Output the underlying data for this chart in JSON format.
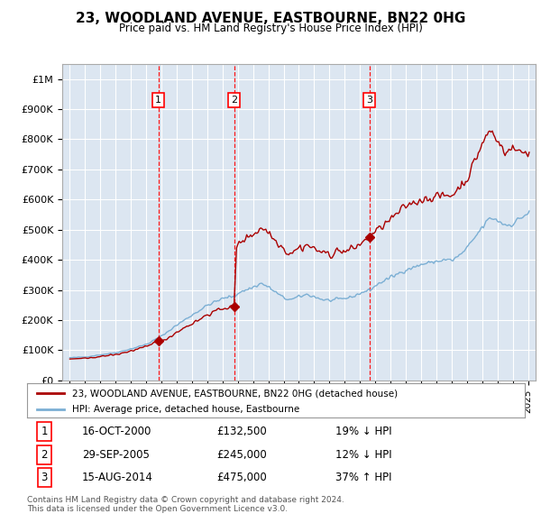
{
  "title": "23, WOODLAND AVENUE, EASTBOURNE, BN22 0HG",
  "subtitle": "Price paid vs. HM Land Registry's House Price Index (HPI)",
  "property_label": "23, WOODLAND AVENUE, EASTBOURNE, BN22 0HG (detached house)",
  "hpi_label": "HPI: Average price, detached house, Eastbourne",
  "property_color": "#aa0000",
  "hpi_color": "#7bafd4",
  "background_color": "#dce6f1",
  "transactions": [
    {
      "num": 1,
      "date": "16-OCT-2000",
      "price": 132500,
      "pct": "19%",
      "dir": "↓",
      "x_year": 2000.79
    },
    {
      "num": 2,
      "date": "29-SEP-2005",
      "price": 245000,
      "pct": "12%",
      "dir": "↓",
      "x_year": 2005.75
    },
    {
      "num": 3,
      "date": "15-AUG-2014",
      "price": 475000,
      "pct": "37%",
      "dir": "↑",
      "x_year": 2014.62
    }
  ],
  "footer": "Contains HM Land Registry data © Crown copyright and database right 2024.\nThis data is licensed under the Open Government Licence v3.0.",
  "ylim": [
    0,
    1050000
  ],
  "yticks": [
    0,
    100000,
    200000,
    300000,
    400000,
    500000,
    600000,
    700000,
    800000,
    900000,
    1000000
  ],
  "ytick_labels": [
    "£0",
    "£100K",
    "£200K",
    "£300K",
    "£400K",
    "£500K",
    "£600K",
    "£700K",
    "£800K",
    "£900K",
    "£1M"
  ],
  "xlim": [
    1994.5,
    2025.5
  ]
}
